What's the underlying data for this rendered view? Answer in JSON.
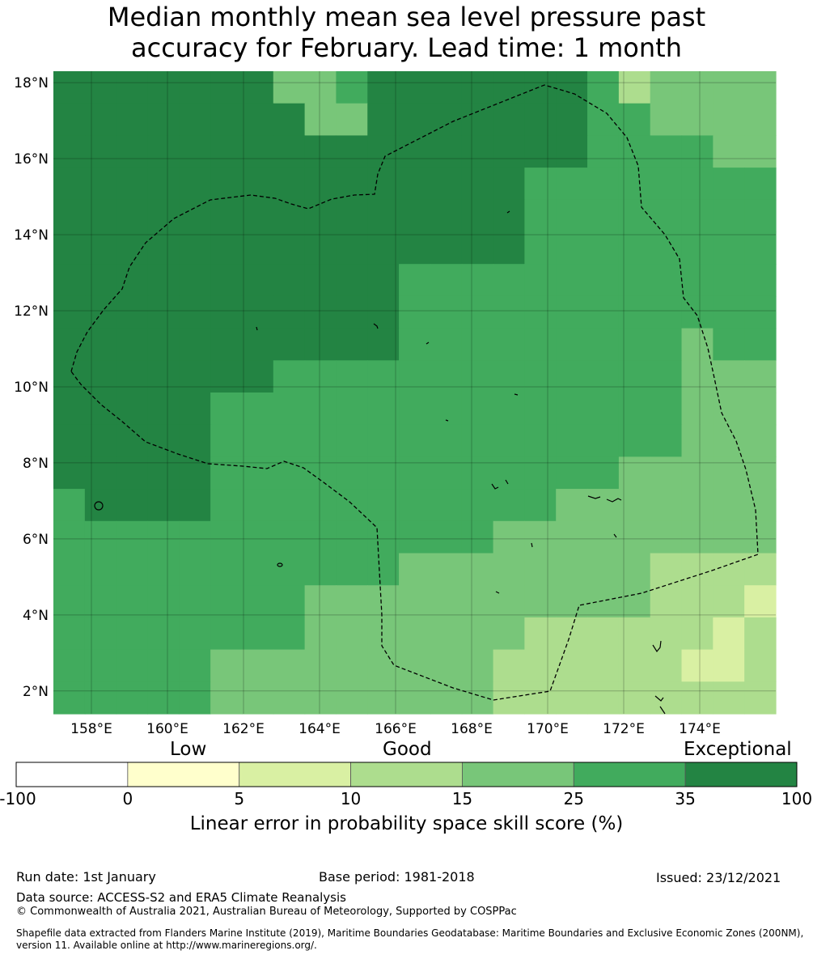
{
  "title": {
    "line1": "Median monthly mean sea level pressure past",
    "line2": "accuracy for February. Lead time: 1 month"
  },
  "map": {
    "lon_range": [
      157,
      176
    ],
    "lat_range": [
      1.4,
      18.3
    ],
    "lon_ticks": [
      "158°E",
      "160°E",
      "162°E",
      "164°E",
      "166°E",
      "168°E",
      "170°E",
      "172°E",
      "174°E"
    ],
    "lat_ticks": [
      "2°N",
      "4°N",
      "6°N",
      "8°N",
      "10°N",
      "12°N",
      "14°N",
      "16°N",
      "18°N"
    ],
    "legend_colors": [
      "#ffffff",
      "#ffffcc",
      "#d9f0a3",
      "#addd8e",
      "#78c679",
      "#41ab5d",
      "#238443"
    ],
    "boundary_style": "dashed black line",
    "grid": true
  },
  "colorbar": {
    "category_labels": [
      "Low",
      "Good",
      "Exceptional"
    ],
    "ticks": [
      "-100",
      "0",
      "5",
      "10",
      "15",
      "25",
      "35",
      "100"
    ],
    "colors": [
      "#ffffff",
      "#ffffcc",
      "#d9f0a3",
      "#addd8e",
      "#78c679",
      "#41ab5d",
      "#238443"
    ],
    "title": "Linear error in probability space skill score (%)"
  },
  "footer": {
    "run_date": "Run date: 1st January",
    "base_period": "Base period: 1981-2018",
    "issued": "Issued: 23/12/2021",
    "data_source": "Data source: ACCESS-S2 and ERA5 Climate Reanalysis",
    "copyright": "© Commonwealth of Australia 2021, Australian Bureau of Meteorology, Supported by COSPPac",
    "shapefile": "Shapefile data extracted from Flanders Marine Institute (2019), Maritime Boundaries Geodatabase: Maritime Boundaries and Exclusive Economic Zones (200NM), version 11. Available online at http://www.marineregions.org/."
  }
}
